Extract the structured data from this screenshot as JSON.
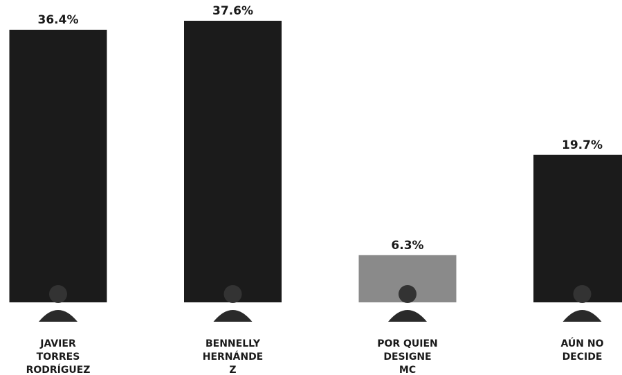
{
  "chart_data": {
    "type": "bar",
    "categories": [
      [
        "JAVIER",
        "TORRES",
        "RODRÍGUEZ"
      ],
      [
        "BENNELLY",
        "HERNÁNDE",
        "Z"
      ],
      [
        "POR QUIEN",
        "DESIGNE",
        "MC"
      ],
      [
        "AÚN NO",
        "DECIDE"
      ]
    ],
    "values": [
      36.4,
      37.6,
      6.3,
      19.7
    ],
    "value_labels": [
      "36.4%",
      "37.6%",
      "6.3%",
      "19.7%"
    ],
    "colors": [
      "#1b1b1b",
      "#1b1b1b",
      "#8a8a8a",
      "#1b1b1b"
    ]
  }
}
